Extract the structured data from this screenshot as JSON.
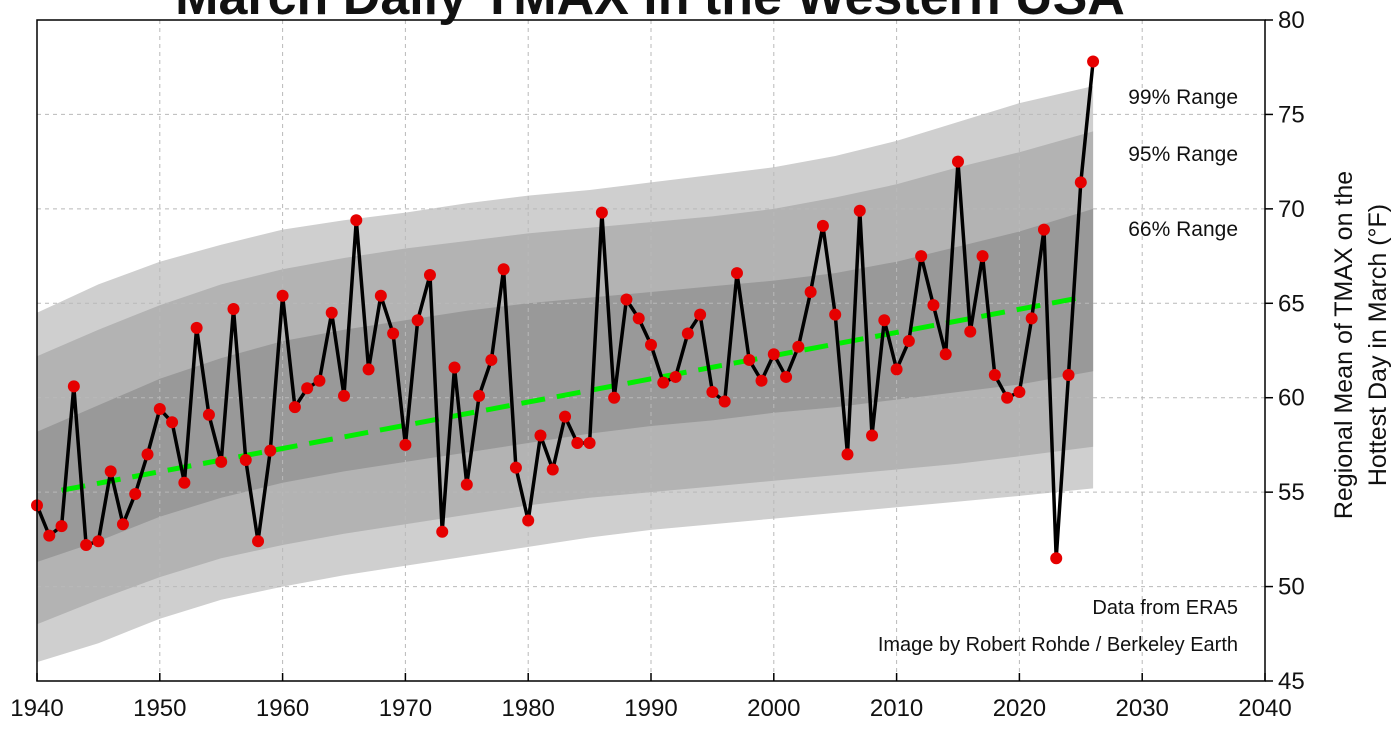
{
  "chart_data": {
    "type": "line",
    "title": "March Daily TMAX in the Western USA",
    "ylabel_line1": "Regional Mean of TMAX on the",
    "ylabel_line2": "Hottest Day in March (°F)",
    "xlim": [
      1940,
      2040
    ],
    "ylim": [
      45,
      80
    ],
    "x_ticks": [
      1940,
      1950,
      1960,
      1970,
      1980,
      1990,
      2000,
      2010,
      2020,
      2030,
      2040
    ],
    "y_ticks": [
      45,
      50,
      55,
      60,
      65,
      70,
      75,
      80
    ],
    "grid": true,
    "y_axis_side": "right",
    "colors": {
      "line": "#000000",
      "points": "#e60000",
      "trend": "#00ee00",
      "band99": "#cfcfcf",
      "band95": "#b3b3b3",
      "band66": "#999999"
    },
    "series": [
      {
        "name": "",
        "x": [
          1940,
          1941,
          1942,
          1943,
          1944,
          1945,
          1946,
          1947,
          1948,
          1949,
          1950,
          1951,
          1952,
          1953,
          1954,
          1955,
          1956,
          1957,
          1958,
          1959,
          1960,
          1961,
          1962,
          1963,
          1964,
          1965,
          1966,
          1967,
          1968,
          1969,
          1970,
          1971,
          1972,
          1973,
          1974,
          1975,
          1976,
          1977,
          1978,
          1979,
          1980,
          1981,
          1982,
          1983,
          1984,
          1985,
          1986,
          1987,
          1988,
          1989,
          1990,
          1991,
          1992,
          1993,
          1994,
          1995,
          1996,
          1997,
          1998,
          1999,
          2000,
          2001,
          2002,
          2003,
          2004,
          2005,
          2006,
          2007,
          2008,
          2009,
          2010,
          2011,
          2012,
          2013,
          2014,
          2015,
          2016,
          2017,
          2018,
          2019,
          2020,
          2021,
          2022,
          2023,
          2024,
          2025,
          2026
        ],
        "values": [
          54.3,
          52.7,
          53.2,
          60.6,
          52.2,
          52.4,
          56.1,
          53.3,
          54.9,
          57.0,
          59.4,
          58.7,
          55.5,
          63.7,
          59.1,
          56.6,
          64.7,
          56.7,
          52.4,
          57.2,
          65.4,
          59.5,
          60.5,
          60.9,
          64.5,
          60.1,
          69.4,
          61.5,
          65.4,
          63.4,
          57.5,
          64.1,
          66.5,
          52.9,
          61.6,
          55.4,
          60.1,
          62.0,
          66.8,
          56.3,
          53.5,
          58.0,
          56.2,
          59.0,
          57.6,
          57.6,
          69.8,
          60.0,
          65.2,
          64.2,
          62.8,
          60.8,
          61.1,
          63.4,
          64.4,
          60.3,
          59.8,
          66.6,
          62.0,
          60.9,
          62.3,
          61.1,
          62.7,
          65.6,
          69.1,
          64.4,
          57.0,
          69.9,
          58.0,
          64.1,
          61.5,
          63.0,
          67.5,
          64.9,
          62.3,
          72.5,
          63.5,
          67.5,
          61.2,
          60.0,
          60.3,
          64.2,
          68.9,
          51.5,
          61.2,
          71.4,
          77.8
        ]
      }
    ],
    "trend": {
      "x": [
        1942,
        2025
      ],
      "y": [
        55.1,
        65.3
      ]
    },
    "bands": {
      "x": [
        1940,
        1945,
        1950,
        1955,
        1960,
        1965,
        1970,
        1975,
        1980,
        1985,
        1990,
        1995,
        2000,
        2005,
        2010,
        2015,
        2020,
        2026
      ],
      "b99": {
        "lower": [
          46.0,
          47.0,
          48.3,
          49.3,
          50.0,
          50.6,
          51.1,
          51.6,
          52.1,
          52.6,
          53.0,
          53.3,
          53.6,
          53.9,
          54.2,
          54.5,
          54.8,
          55.2
        ],
        "upper": [
          64.5,
          66.0,
          67.2,
          68.1,
          68.9,
          69.4,
          69.8,
          70.3,
          70.7,
          71.0,
          71.4,
          71.8,
          72.2,
          72.8,
          73.6,
          74.6,
          75.6,
          76.5
        ]
      },
      "b95": {
        "lower": [
          48.0,
          49.3,
          50.5,
          51.5,
          52.2,
          52.8,
          53.3,
          53.8,
          54.3,
          54.7,
          55.0,
          55.3,
          55.6,
          55.9,
          56.2,
          56.5,
          56.9,
          57.4
        ],
        "upper": [
          62.2,
          63.6,
          64.9,
          66.0,
          66.8,
          67.4,
          67.9,
          68.3,
          68.7,
          69.0,
          69.3,
          69.6,
          70.0,
          70.6,
          71.3,
          72.2,
          73.0,
          74.1
        ]
      },
      "b66": {
        "lower": [
          51.3,
          52.4,
          53.7,
          54.7,
          55.5,
          56.1,
          56.6,
          57.1,
          57.6,
          58.1,
          58.5,
          58.8,
          59.2,
          59.5,
          59.9,
          60.3,
          60.7,
          61.4
        ],
        "upper": [
          58.2,
          59.6,
          61.0,
          62.1,
          63.0,
          63.6,
          64.1,
          64.6,
          65.0,
          65.3,
          65.6,
          65.9,
          66.2,
          66.6,
          67.2,
          68.0,
          68.8,
          70.0
        ]
      }
    },
    "annotations": {
      "range99": "99% Range",
      "range95": "95% Range",
      "range66": "66% Range",
      "source": "Data from ERA5",
      "credit": "Image by Robert Rohde / Berkeley Earth"
    }
  }
}
